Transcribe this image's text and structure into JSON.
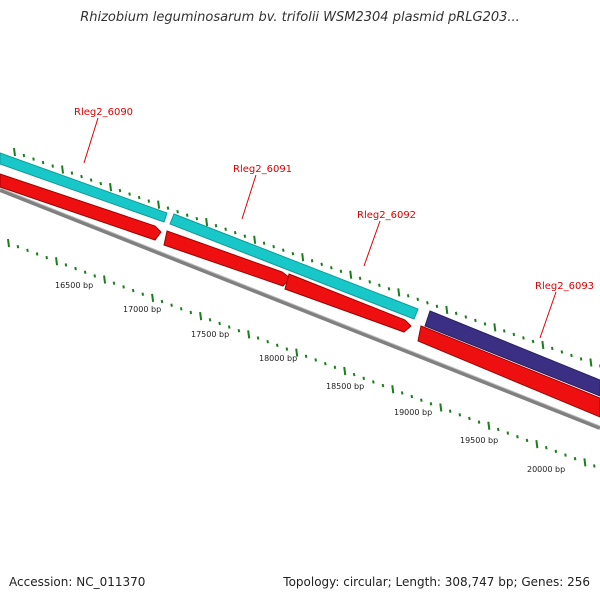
{
  "title": "Rhizobium leguminosarum bv. trifolii WSM2304 plasmid pRLG203...",
  "footer": {
    "accession": "Accession: NC_011370",
    "stats": "Topology: circular; Length: 308,747 bp; Genes: 256"
  },
  "colors": {
    "forward_cds": "#18c8c8",
    "forward_cds_alt": "#3b2f84",
    "reverse_cds": "#ee1010",
    "backbone": "#7a7a7a",
    "tick": "#1a7f1a",
    "gene_label": "#dd0000"
  },
  "gene_labels": [
    "Rleg2_6090",
    "Rleg2_6091",
    "Rleg2_6092",
    "Rleg2_6093"
  ],
  "bp_labels": [
    "16500 bp",
    "17000 bp",
    "17500 bp",
    "18000 bp",
    "18500 bp",
    "19000 bp",
    "19500 bp",
    "20000 bp"
  ]
}
